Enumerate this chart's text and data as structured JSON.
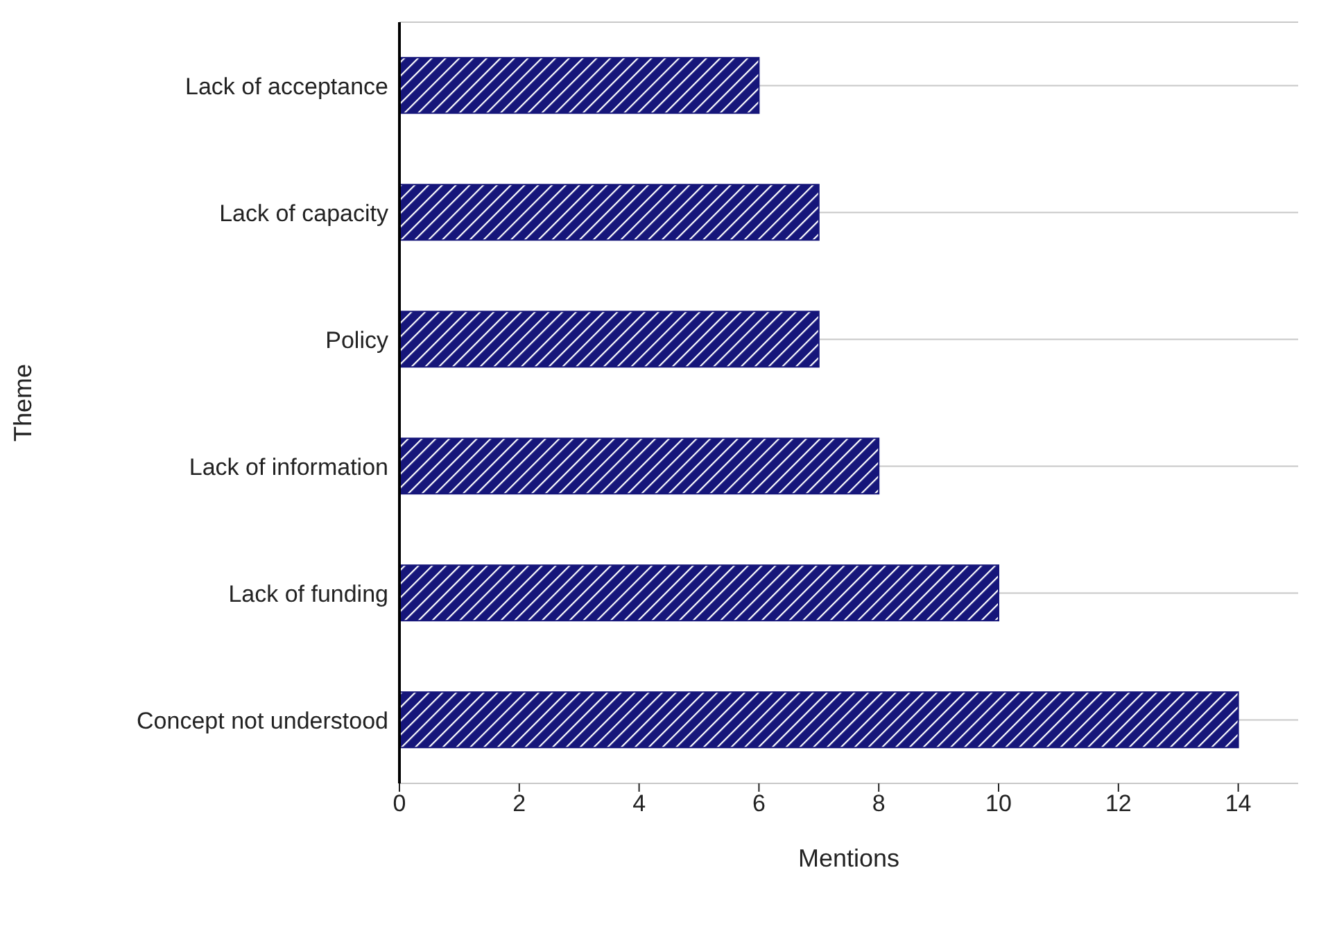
{
  "chart_data": {
    "type": "bar",
    "orientation": "horizontal",
    "xlabel": "Mentions",
    "ylabel": "Theme",
    "categories": [
      "Lack of acceptance",
      "Lack of capacity",
      "Policy",
      "Lack of information",
      "Lack of funding",
      "Concept not understood"
    ],
    "values": [
      6,
      7,
      7,
      8,
      10,
      14
    ],
    "color": "#16167a",
    "xlim": [
      0,
      15
    ],
    "xticks": [
      0,
      2,
      4,
      6,
      8,
      10,
      12,
      14
    ],
    "grid": "y"
  }
}
